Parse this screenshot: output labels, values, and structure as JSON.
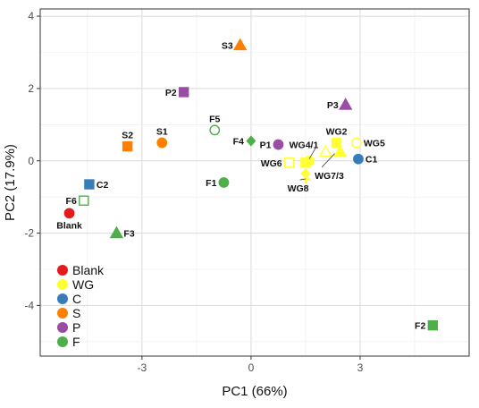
{
  "chart_data": {
    "type": "scatter",
    "title": "",
    "xlabel": "PC1 (66%)",
    "ylabel": "PC2 (17.9%)",
    "xlim": [
      -5.8,
      6.0
    ],
    "ylim": [
      -5.4,
      4.2
    ],
    "xticks": [
      -3,
      0,
      3
    ],
    "yticks": [
      -4,
      -2,
      0,
      2,
      4
    ],
    "grid": true,
    "legend": {
      "position": "bottom-left",
      "entries": [
        {
          "label": "Blank",
          "color": "#e41a1c"
        },
        {
          "label": "WG",
          "color": "#ffff33"
        },
        {
          "label": "C",
          "color": "#377eb8"
        },
        {
          "label": "S",
          "color": "#ff7f00"
        },
        {
          "label": "P",
          "color": "#984ea3"
        },
        {
          "label": "F",
          "color": "#4daf4a"
        }
      ]
    },
    "points": [
      {
        "label": "Blank",
        "group": "Blank",
        "shape": "circle",
        "filled": true,
        "x": -5.0,
        "y": -1.45,
        "label_pos": "below"
      },
      {
        "label": "C1",
        "group": "C",
        "shape": "circle",
        "filled": true,
        "x": 2.95,
        "y": 0.05,
        "label_pos": "right"
      },
      {
        "label": "C2",
        "group": "C",
        "shape": "square",
        "filled": true,
        "x": -4.45,
        "y": -0.65,
        "label_pos": "right"
      },
      {
        "label": "S1",
        "group": "S",
        "shape": "circle",
        "filled": true,
        "x": -2.45,
        "y": 0.5,
        "label_pos": "above"
      },
      {
        "label": "S2",
        "group": "S",
        "shape": "square",
        "filled": true,
        "x": -3.4,
        "y": 0.4,
        "label_pos": "above"
      },
      {
        "label": "S3",
        "group": "S",
        "shape": "triangle",
        "filled": true,
        "x": -0.3,
        "y": 3.2,
        "label_pos": "left"
      },
      {
        "label": "P1",
        "group": "P",
        "shape": "circle",
        "filled": true,
        "x": 0.75,
        "y": 0.45,
        "label_pos": "left"
      },
      {
        "label": "P2",
        "group": "P",
        "shape": "square",
        "filled": true,
        "x": -1.85,
        "y": 1.9,
        "label_pos": "left"
      },
      {
        "label": "P3",
        "group": "P",
        "shape": "triangle",
        "filled": true,
        "x": 2.6,
        "y": 1.55,
        "label_pos": "left"
      },
      {
        "label": "F1",
        "group": "F",
        "shape": "circle",
        "filled": true,
        "x": -0.75,
        "y": -0.6,
        "label_pos": "left"
      },
      {
        "label": "F2",
        "group": "F",
        "shape": "square",
        "filled": true,
        "x": 5.0,
        "y": -4.55,
        "label_pos": "left"
      },
      {
        "label": "F3",
        "group": "F",
        "shape": "triangle",
        "filled": true,
        "x": -3.7,
        "y": -2.0,
        "label_pos": "right"
      },
      {
        "label": "F4",
        "group": "F",
        "shape": "diamond",
        "filled": true,
        "x": 0.0,
        "y": 0.55,
        "label_pos": "left"
      },
      {
        "label": "F5",
        "group": "F",
        "shape": "circle",
        "filled": false,
        "x": -1.0,
        "y": 0.85,
        "label_pos": "above"
      },
      {
        "label": "F6",
        "group": "F",
        "shape": "square",
        "filled": false,
        "x": -4.6,
        "y": -1.1,
        "label_pos": "left"
      },
      {
        "label": "WG2",
        "group": "WG",
        "shape": "square",
        "filled": true,
        "x": 2.35,
        "y": 0.5,
        "label_pos": "above"
      },
      {
        "label": "WG5",
        "group": "WG",
        "shape": "circle",
        "filled": false,
        "x": 2.9,
        "y": 0.5,
        "label_pos": "right"
      },
      {
        "label": "WG6",
        "group": "WG",
        "shape": "square",
        "filled": false,
        "x": 1.05,
        "y": -0.05,
        "label_pos": "left"
      },
      {
        "label": "",
        "group": "WG",
        "shape": "circle",
        "filled": true,
        "x": 1.6,
        "y": 0.0
      },
      {
        "label": "",
        "group": "WG",
        "shape": "square",
        "filled": true,
        "x": 1.5,
        "y": -0.05
      },
      {
        "label": "",
        "group": "WG",
        "shape": "triangle",
        "filled": false,
        "x": 2.05,
        "y": 0.25
      },
      {
        "label": "",
        "group": "WG",
        "shape": "triangle",
        "filled": true,
        "x": 2.45,
        "y": 0.25
      },
      {
        "label": "",
        "group": "WG",
        "shape": "diamond",
        "filled": true,
        "x": 1.5,
        "y": -0.35
      },
      {
        "label": "",
        "group": "WG",
        "shape": "cross",
        "filled": true,
        "x": 1.5,
        "y": -0.5
      }
    ],
    "annotations": [
      {
        "text": "WG4/1",
        "x": 1.05,
        "y": 0.45,
        "anchor": "start",
        "point_to": [
          1.6,
          0.05
        ]
      },
      {
        "text": "WG7/3",
        "x": 1.75,
        "y": -0.4,
        "anchor": "start",
        "point_to": [
          2.3,
          0.2
        ]
      },
      {
        "text": "WG8",
        "x": 1.0,
        "y": -0.75,
        "anchor": "start",
        "point_to": [
          1.5,
          -0.5
        ]
      }
    ]
  }
}
